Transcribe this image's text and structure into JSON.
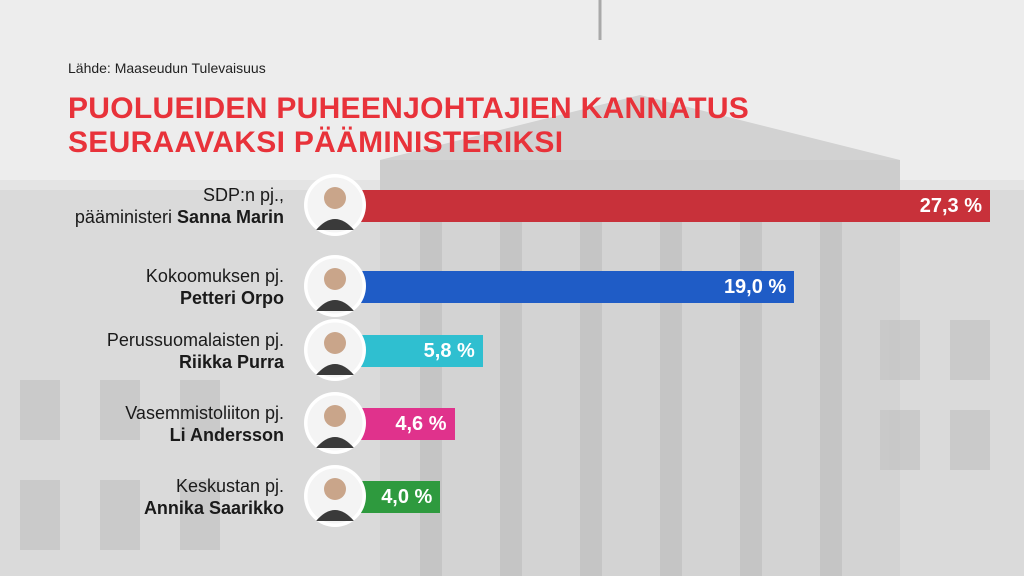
{
  "source": "Lähde: Maaseudun Tulevaisuus",
  "title_line1": "PUOLUEIDEN PUHEENJOHTAJIEN KANNATUS",
  "title_line2": "SEURAAVAKSI PÄÄMINISTERIKSI",
  "colors": {
    "title": "#e8323a",
    "bars": [
      "#c8313a",
      "#1f5cc6",
      "#2fbfd0",
      "#e0328c",
      "#2e9a3e"
    ]
  },
  "chart_data": {
    "type": "bar",
    "orientation": "horizontal",
    "title": "PUOLUEIDEN PUHEENJOHTAJIEN KANNATUS SEURAAVAKSI PÄÄMINISTERIKSI",
    "unit": "%",
    "xlim": [
      0,
      27.3
    ],
    "categories": [
      "Sanna Marin",
      "Petteri Orpo",
      "Riikka Purra",
      "Li Andersson",
      "Annika Saarikko"
    ],
    "values": [
      27.3,
      19.0,
      5.8,
      4.6,
      4.0
    ],
    "items": [
      {
        "role": "SDP:n pj.,",
        "prefix": "pääministeri ",
        "name": "Sanna Marin",
        "value": 27.3,
        "value_label": "27,3 %",
        "avatar_icon": "portrait-icon"
      },
      {
        "role": "Kokoomuksen pj.",
        "prefix": "",
        "name": "Petteri Orpo",
        "value": 19.0,
        "value_label": "19,0 %",
        "avatar_icon": "portrait-icon"
      },
      {
        "role": "Perussuomalaisten pj.",
        "prefix": "",
        "name": "Riikka Purra",
        "value": 5.8,
        "value_label": "5,8 %",
        "avatar_icon": "portrait-icon"
      },
      {
        "role": "Vasemmistoliiton pj.",
        "prefix": "",
        "name": "Li Andersson",
        "value": 4.6,
        "value_label": "4,6 %",
        "avatar_icon": "portrait-icon"
      },
      {
        "role": "Keskustan pj.",
        "prefix": "",
        "name": "Annika Saarikko",
        "value": 4.0,
        "value_label": "4,0 %",
        "avatar_icon": "portrait-icon"
      }
    ]
  }
}
